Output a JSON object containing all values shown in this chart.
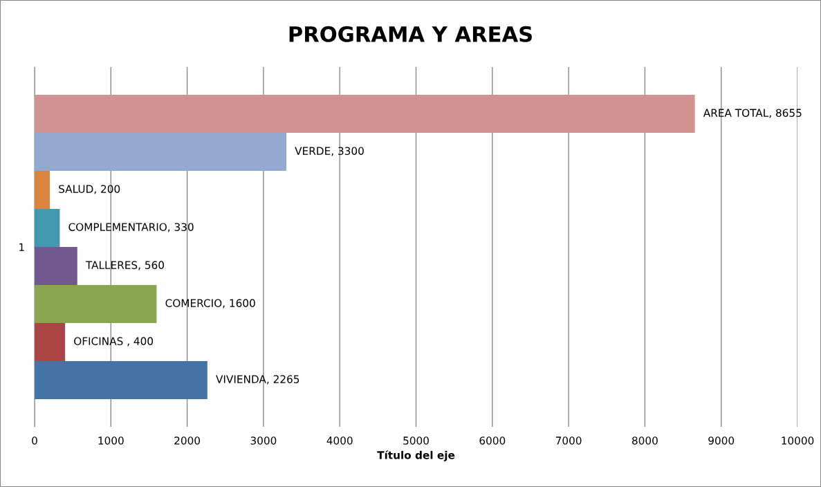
{
  "chart_data": {
    "type": "bar",
    "title": "PROGRAMA Y AREAS",
    "xlabel": "Título del eje",
    "orientation": "horizontal",
    "categories": [
      "1"
    ],
    "series": [
      {
        "color": "#d19392",
        "values": [
          8655
        ],
        "value_labels": [
          "AREA TOTAL, 8655"
        ]
      },
      {
        "color": "#93a9cf",
        "values": [
          3300
        ],
        "value_labels": [
          "VERDE, 3300"
        ]
      },
      {
        "color": "#db843d",
        "values": [
          200
        ],
        "value_labels": [
          "SALUD, 200"
        ]
      },
      {
        "color": "#4198af",
        "values": [
          330
        ],
        "value_labels": [
          "COMPLEMENTARIO, 330"
        ]
      },
      {
        "color": "#71588f",
        "values": [
          560
        ],
        "value_labels": [
          "TALLERES, 560"
        ]
      },
      {
        "color": "#89a54e",
        "values": [
          1600
        ],
        "value_labels": [
          "COMERCIO, 1600"
        ]
      },
      {
        "color": "#aa4643",
        "values": [
          400
        ],
        "value_labels": [
          "OFICINAS , 400"
        ]
      },
      {
        "color": "#4572a7",
        "values": [
          2265
        ],
        "value_labels": [
          "VIVIENDA, 2265"
        ]
      }
    ],
    "xlim": [
      0,
      10000
    ],
    "xticks": [
      0,
      1000,
      2000,
      3000,
      4000,
      5000,
      6000,
      7000,
      8000,
      9000,
      10000
    ],
    "grid": "x"
  }
}
